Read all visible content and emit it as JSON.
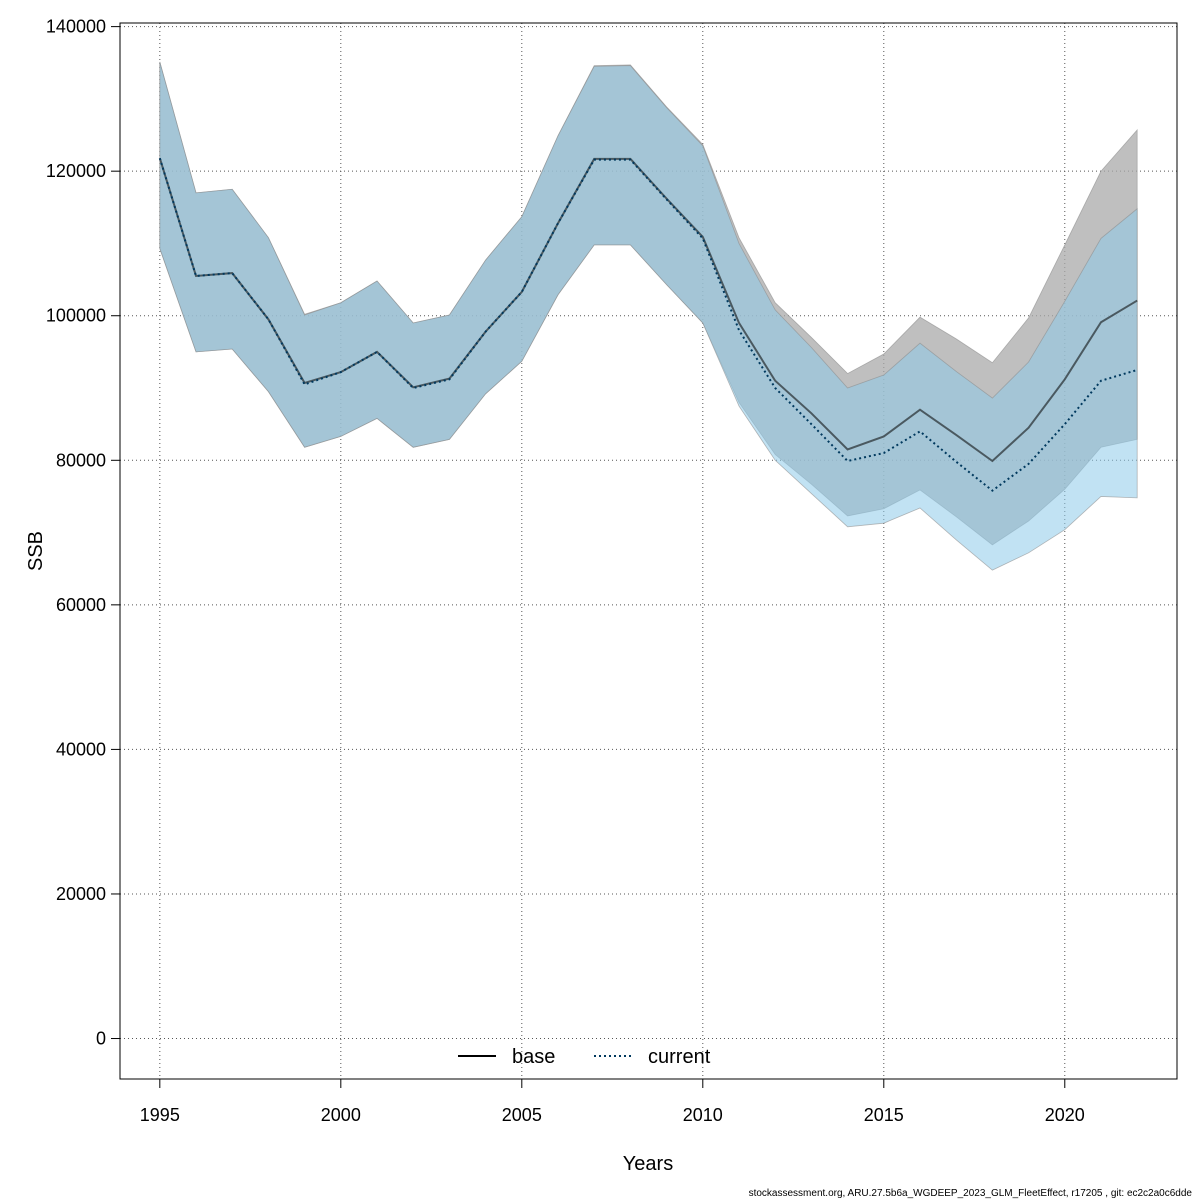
{
  "chart_data": {
    "type": "line",
    "xlabel": "Years",
    "ylabel": "SSB",
    "xlim": [
      1993.9,
      2023.1
    ],
    "ylim": [
      -5600,
      140500
    ],
    "x_ticks": [
      1995,
      2000,
      2005,
      2010,
      2015,
      2020
    ],
    "y_ticks": [
      0,
      20000,
      40000,
      60000,
      80000,
      100000,
      120000,
      140000
    ],
    "grid": true,
    "legend_position": "bottom-center",
    "x": [
      1995,
      1996,
      1997,
      1998,
      1999,
      2000,
      2001,
      2002,
      2003,
      2004,
      2005,
      2006,
      2007,
      2008,
      2009,
      2010,
      2011,
      2012,
      2013,
      2014,
      2015,
      2016,
      2017,
      2018,
      2019,
      2020,
      2021,
      2022
    ],
    "series": [
      {
        "name": "base",
        "line_style": "solid",
        "line_color": "#000000",
        "band_color": "#a9a9a9",
        "values": [
          121800,
          105500,
          105900,
          99500,
          90700,
          92200,
          95000,
          90100,
          91300,
          97800,
          103300,
          112800,
          121700,
          121700,
          116200,
          110900,
          99000,
          91000,
          86500,
          81500,
          83300,
          87000,
          83500,
          79900,
          84500,
          91200,
          99100,
          102100
        ],
        "lower": [
          109300,
          95000,
          95400,
          89500,
          81800,
          83300,
          85800,
          81800,
          82900,
          89200,
          93700,
          102900,
          109800,
          109800,
          104300,
          99000,
          88000,
          80800,
          76700,
          72300,
          73300,
          75900,
          72200,
          68300,
          71600,
          76000,
          81800,
          82900
        ],
        "upper": [
          135100,
          117000,
          117500,
          110800,
          100200,
          101800,
          104800,
          99000,
          100100,
          107700,
          113700,
          124900,
          134600,
          134700,
          128900,
          123700,
          110800,
          101800,
          97000,
          92000,
          94700,
          99800,
          96800,
          93500,
          99700,
          109800,
          120000,
          125700
        ]
      },
      {
        "name": "current",
        "line_style": "dotted",
        "line_color": "#00395e",
        "band_color": "#8ecae9",
        "values": [
          121800,
          105500,
          105900,
          99500,
          90500,
          92200,
          95000,
          90000,
          91200,
          97800,
          103300,
          112800,
          121600,
          121600,
          116100,
          110700,
          98000,
          90000,
          85000,
          79900,
          81000,
          84000,
          79800,
          75800,
          79500,
          85000,
          91000,
          92500
        ],
        "lower": [
          109300,
          95000,
          95400,
          89500,
          81800,
          83300,
          85800,
          81800,
          82900,
          89200,
          93700,
          102900,
          109800,
          109800,
          104300,
          99000,
          87500,
          80000,
          75400,
          70800,
          71300,
          73400,
          69000,
          64800,
          67200,
          70400,
          75000,
          74800
        ],
        "upper": [
          135100,
          117000,
          117500,
          110800,
          100100,
          101800,
          104800,
          99000,
          100100,
          107700,
          113700,
          124900,
          134500,
          134600,
          128800,
          123500,
          110000,
          100800,
          95600,
          90000,
          91800,
          96200,
          92300,
          88600,
          93600,
          102000,
          110700,
          114800
        ]
      }
    ]
  },
  "footer": "stockassessment.org, ARU.27.5b6a_WGDEEP_2023_GLM_FleetEffect, r17205 , git: ec2c2a0c6dde"
}
